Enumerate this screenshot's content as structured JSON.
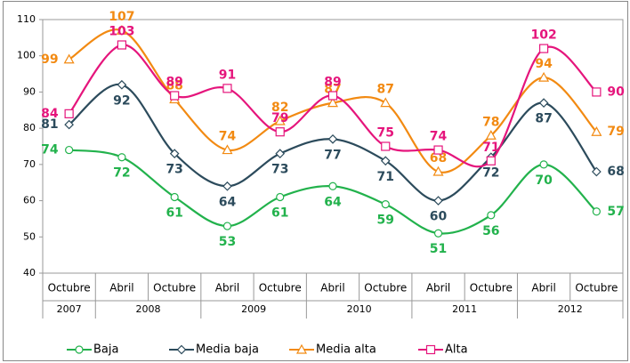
{
  "chart_data": {
    "type": "line",
    "categories": [
      "Octubre",
      "Abril",
      "Octubre",
      "Abril",
      "Octubre",
      "Abril",
      "Octubre",
      "Abril",
      "Octubre",
      "Abril",
      "Octubre"
    ],
    "category_groups": [
      "2007",
      "2008",
      null,
      "2009",
      null,
      "2010",
      null,
      "2011",
      null,
      "2012",
      null
    ],
    "ylim": [
      40,
      110
    ],
    "yticks": [
      40,
      50,
      60,
      70,
      80,
      90,
      100,
      110
    ],
    "grid": false,
    "smooth": true,
    "legend": "bottom",
    "series": [
      {
        "name": "Baja",
        "color": "#22b24c",
        "marker": "circle",
        "values": [
          74,
          72,
          61,
          53,
          61,
          64,
          59,
          51,
          56,
          70,
          57
        ]
      },
      {
        "name": "Media baja",
        "color": "#2c4b5c",
        "marker": "diamond",
        "values": [
          81,
          92,
          73,
          64,
          73,
          77,
          71,
          60,
          72,
          87,
          68
        ]
      },
      {
        "name": "Media alta",
        "color": "#f28a12",
        "marker": "triangle",
        "values": [
          99,
          107,
          88,
          74,
          82,
          87,
          87,
          68,
          78,
          94,
          79
        ]
      },
      {
        "name": "Alta",
        "color": "#e5157c",
        "marker": "square",
        "values": [
          84,
          103,
          89,
          91,
          79,
          89,
          75,
          74,
          71,
          102,
          90
        ]
      }
    ]
  }
}
